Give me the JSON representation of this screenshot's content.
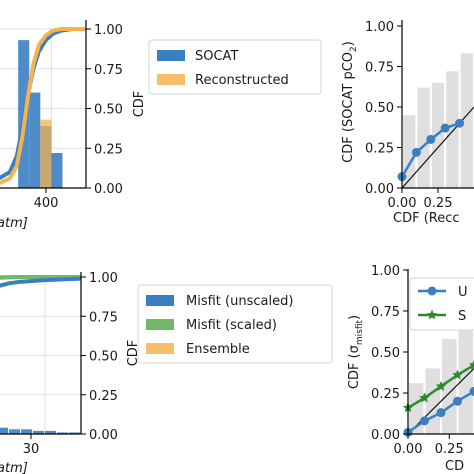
{
  "chart_data": [
    {
      "type": "bar",
      "panel": "top-left",
      "ylabel": "CDF",
      "xlabel_fragment": "atm]",
      "x_tick_labels": [
        "400"
      ],
      "y_tick_labels": [
        "0.00",
        "0.25",
        "0.50",
        "0.75",
        "1.00"
      ],
      "ylim": [
        0,
        1
      ],
      "xlim": [
        320,
        450
      ],
      "grid": true,
      "legend_position": "right",
      "legend": [
        {
          "label": "SOCAT",
          "color": "#3a7fc1"
        },
        {
          "label": "Reconstructed",
          "color": "#f5b350"
        }
      ],
      "histogram": {
        "bins": [
          [
            320,
            336
          ],
          [
            336,
            352
          ],
          [
            352,
            368
          ],
          [
            368,
            384
          ],
          [
            384,
            400
          ],
          [
            400,
            416
          ],
          [
            416,
            432
          ]
        ],
        "socat": [
          0.0,
          0.0,
          0.93,
          0.6,
          0.39,
          0.22,
          0.0
        ],
        "reconstructed": [
          0.0,
          0.0,
          0.0,
          0.0,
          0.43,
          0.0,
          0.0
        ]
      },
      "series": [
        {
          "name": "SOCAT",
          "x": [
            320,
            340,
            350,
            358,
            366,
            374,
            382,
            392,
            402,
            414,
            430,
            450
          ],
          "y": [
            0.05,
            0.1,
            0.2,
            0.38,
            0.58,
            0.75,
            0.86,
            0.93,
            0.97,
            0.99,
            1.0,
            1.0
          ]
        },
        {
          "name": "Reconstructed",
          "x": [
            320,
            340,
            350,
            358,
            366,
            374,
            382,
            392,
            402,
            414,
            430,
            450
          ],
          "y": [
            0.02,
            0.06,
            0.14,
            0.32,
            0.57,
            0.78,
            0.9,
            0.96,
            0.99,
            1.0,
            1.0,
            1.0
          ]
        }
      ]
    },
    {
      "type": "line",
      "panel": "top-right",
      "ylabel": "CDF (SOCAT pCO",
      "ylabel_sub": "2",
      "ylabel_end": ")",
      "xlabel": "CDF (Recc",
      "x_tick_labels": [
        "0.00",
        "0.25"
      ],
      "y_tick_labels": [
        "0.00",
        "0.25",
        "0.50",
        "0.75",
        "1.00"
      ],
      "xlim": [
        0,
        0.5
      ],
      "ylim": [
        0,
        1
      ],
      "bars": {
        "edges": [
          0,
          0.1,
          0.2,
          0.3,
          0.4,
          0.5
        ],
        "heights": [
          0.45,
          0.62,
          0.65,
          0.72,
          0.83
        ]
      },
      "reference_line": {
        "x": [
          0,
          0.5
        ],
        "y": [
          0,
          0.5
        ]
      },
      "series": [
        {
          "x": [
            0.0,
            0.1,
            0.2,
            0.3,
            0.4
          ],
          "y": [
            0.07,
            0.22,
            0.3,
            0.37,
            0.4
          ],
          "color": "#3a7fc1",
          "marker": "circle"
        }
      ]
    },
    {
      "type": "bar",
      "panel": "bottom-left",
      "ylabel": "CDF",
      "xlabel_fragment": "atm]",
      "x_tick_labels": [
        "30"
      ],
      "y_tick_labels": [
        "0.00",
        "0.25",
        "0.50",
        "0.75",
        "1.00"
      ],
      "xlim": [
        5,
        45
      ],
      "ylim": [
        0,
        1
      ],
      "grid": true,
      "legend_position": "right",
      "legend": [
        {
          "label": "Misfit (unscaled)",
          "color": "#3a7fc1"
        },
        {
          "label": "Misfit (scaled)",
          "color": "#72b86a"
        },
        {
          "label": "Ensemble",
          "color": "#f5b350"
        }
      ],
      "histogram": {
        "bins": [
          [
            5,
            10
          ],
          [
            10,
            15
          ],
          [
            15,
            20
          ],
          [
            20,
            25
          ],
          [
            25,
            30
          ],
          [
            30,
            35
          ],
          [
            35,
            40
          ],
          [
            40,
            45
          ]
        ],
        "unscaled": [
          0.06,
          0.04,
          0.03,
          0.03,
          0.02,
          0.02,
          0.01,
          0.01
        ]
      },
      "series": [
        {
          "name": "Misfit (unscaled)",
          "x": [
            5,
            10,
            15,
            20,
            30,
            45
          ],
          "y": [
            0.9,
            0.94,
            0.96,
            0.97,
            0.98,
            0.99
          ]
        },
        {
          "name": "Misfit (scaled)",
          "x": [
            5,
            10,
            20,
            45
          ],
          "y": [
            0.99,
            0.995,
            1.0,
            1.0
          ]
        },
        {
          "name": "Ensemble",
          "x": [
            5,
            45
          ],
          "y": [
            1.0,
            1.0
          ]
        }
      ]
    },
    {
      "type": "line",
      "panel": "bottom-right",
      "ylabel": "CDF (σ",
      "ylabel_sub": "misfit",
      "ylabel_end": ")",
      "xlabel": "CD",
      "x_tick_labels": [
        "0.00",
        "0.25"
      ],
      "y_tick_labels": [
        "0.00",
        "0.25",
        "0.50",
        "0.75",
        "1.00"
      ],
      "xlim": [
        0,
        0.4
      ],
      "ylim": [
        0,
        1
      ],
      "bars": {
        "edges": [
          0,
          0.1,
          0.2,
          0.3,
          0.4
        ],
        "heights": [
          0.31,
          0.4,
          0.58,
          0.71
        ]
      },
      "reference_line": {
        "x": [
          0,
          0.4
        ],
        "y": [
          0,
          0.4
        ]
      },
      "legend": [
        {
          "label": "U",
          "color": "#3a7fc1",
          "marker": "circle"
        },
        {
          "label": "S",
          "color": "#2d8a2d",
          "marker": "star"
        }
      ],
      "series": [
        {
          "name": "U",
          "x": [
            0.0,
            0.1,
            0.2,
            0.3,
            0.4
          ],
          "y": [
            0.01,
            0.08,
            0.13,
            0.2,
            0.26
          ],
          "color": "#3a7fc1",
          "marker": "circle"
        },
        {
          "name": "S",
          "x": [
            0.0,
            0.1,
            0.2,
            0.3,
            0.4
          ],
          "y": [
            0.16,
            0.22,
            0.29,
            0.36,
            0.42
          ],
          "color": "#2d8a2d",
          "marker": "star"
        }
      ]
    }
  ]
}
